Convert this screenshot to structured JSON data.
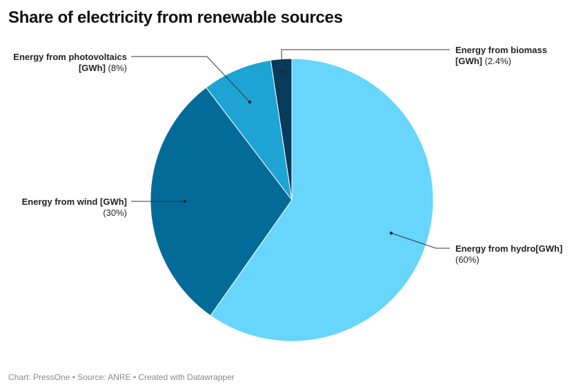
{
  "chart_data": {
    "type": "pie",
    "title": "Share of electricity from renewable sources",
    "categories": [
      "Energy from hydro[GWh]",
      "Energy from wind [GWh]",
      "Energy from photovoltaics [GWh]",
      "Energy from biomass [GWh]"
    ],
    "values": [
      60,
      30,
      8,
      2.4
    ],
    "value_labels": [
      "(60%)",
      "(30%)",
      "(8%)",
      "(2.4%)"
    ],
    "colors": [
      "#67d5fc",
      "#036b98",
      "#1ea4d4",
      "#083a5c"
    ],
    "source": "Chart: PressOne • Source: ANRE • Created with Datawrapper"
  }
}
